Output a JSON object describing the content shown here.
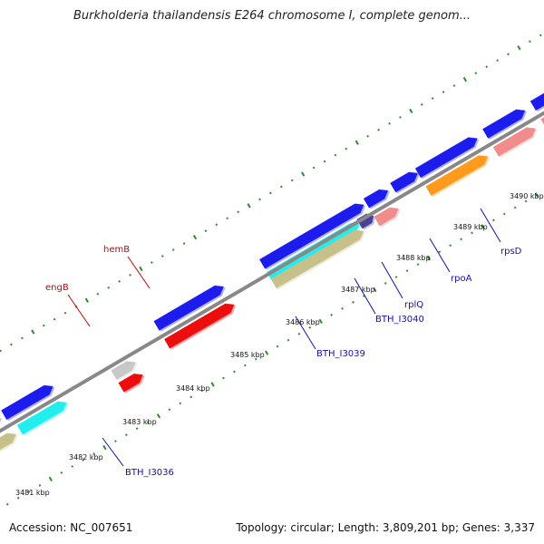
{
  "title": "Burkholderia thailandensis E264 chromosome I, complete genom...",
  "footer": {
    "accession": "Accession: NC_007651",
    "summary": "Topology: circular; Length: 3,809,201 bp; Genes: 3,337"
  },
  "kbp_labels": [
    "3481 kbp",
    "3482 kbp",
    "3483 kbp",
    "3484 kbp",
    "3485 kbp",
    "3486 kbp",
    "3487 kbp",
    "3488 kbp",
    "3489 kbp",
    "3490 kbp"
  ],
  "gene_labels": [
    {
      "text": "engB",
      "color": "#cc0000"
    },
    {
      "text": "hemB",
      "color": "#cc0000"
    },
    {
      "text": "BTH_I3036",
      "color": "#1111aa"
    },
    {
      "text": "BTH_I3039",
      "color": "#1111aa"
    },
    {
      "text": "BTH_I3040",
      "color": "#1111aa"
    },
    {
      "text": "rplQ",
      "color": "#1111aa"
    },
    {
      "text": "rpoA",
      "color": "#1111aa"
    },
    {
      "text": "rpsD",
      "color": "#1111aa"
    }
  ],
  "colors": {
    "backbone": "#888888",
    "tick": "#2e8b2e",
    "cds": "#1a1aee",
    "rrna_red": "#ee1111",
    "grey": "#c8c8c8",
    "cyan": "#22eeee",
    "olive": "#c8c08a",
    "pink": "#f08c8c",
    "orange": "#ff9a1a",
    "purple": "#4a3f9a"
  }
}
